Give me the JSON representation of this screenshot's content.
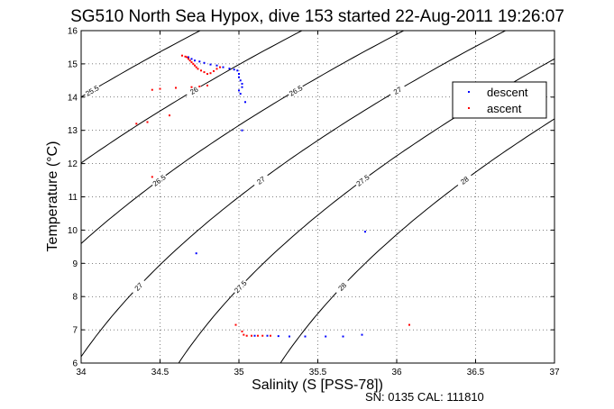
{
  "chart_data": {
    "type": "scatter",
    "title": "SG510 North Sea Hypox, dive 153 started 22-Aug-2011 19:26:07",
    "xlabel": "Salinity (S [PSS-78])",
    "ylabel": "Temperature (°C)",
    "footer": "SN: 0135  CAL: 111810",
    "xlim": [
      34,
      37
    ],
    "ylim": [
      6,
      16
    ],
    "xticks": [
      "34",
      "34.5",
      "35",
      "35.5",
      "36",
      "36.5",
      "37"
    ],
    "yticks": [
      "6",
      "7",
      "8",
      "9",
      "10",
      "11",
      "12",
      "13",
      "14",
      "15",
      "16"
    ],
    "grid": "dotted",
    "legend": {
      "placement": "top-right",
      "entries": [
        "descent",
        "ascent"
      ]
    },
    "colors": {
      "descent": "#0000ff",
      "ascent": "#ff0000",
      "contour": "#000000"
    },
    "density_contours": [
      {
        "sigma": 25.5,
        "label": "25.5"
      },
      {
        "sigma": 26,
        "label": "26"
      },
      {
        "sigma": 26.5,
        "label": "26.5"
      },
      {
        "sigma": 27,
        "label": "27"
      },
      {
        "sigma": 27.5,
        "label": "27.5"
      },
      {
        "sigma": 28,
        "label": "28"
      }
    ],
    "series": [
      {
        "name": "descent",
        "marker": ".",
        "x": [
          34.68,
          34.7,
          34.72,
          34.75,
          34.78,
          34.82,
          34.86,
          34.9,
          34.94,
          34.97,
          34.99,
          35.0,
          35.0,
          35.01,
          35.02,
          35.02,
          35.0,
          35.01,
          35.04,
          34.73,
          35.1,
          35.18,
          35.25,
          35.32,
          35.42,
          35.55,
          35.66,
          35.78,
          35.8,
          35.02
        ],
        "y": [
          15.2,
          15.15,
          15.1,
          15.07,
          15.03,
          14.98,
          14.95,
          14.9,
          14.86,
          14.83,
          14.8,
          14.7,
          14.6,
          14.5,
          14.4,
          14.3,
          14.2,
          14.1,
          13.85,
          9.3,
          6.82,
          6.82,
          6.81,
          6.8,
          6.8,
          6.8,
          6.8,
          6.85,
          9.95,
          13.0
        ]
      },
      {
        "name": "ascent",
        "marker": ".",
        "x": [
          34.64,
          34.66,
          34.67,
          34.68,
          34.69,
          34.7,
          34.71,
          34.72,
          34.73,
          34.74,
          34.76,
          34.78,
          34.8,
          34.82,
          34.84,
          34.86,
          34.88,
          34.8,
          34.75,
          34.7,
          34.6,
          34.5,
          34.45,
          34.56,
          34.42,
          34.35,
          34.45,
          34.98,
          35.02,
          35.03,
          35.05,
          35.08,
          35.12,
          35.15,
          35.2,
          36.08
        ],
        "y": [
          15.25,
          15.22,
          15.2,
          15.15,
          15.1,
          15.05,
          15.0,
          14.95,
          14.9,
          14.85,
          14.8,
          14.75,
          14.7,
          14.72,
          14.78,
          14.85,
          14.9,
          14.35,
          14.32,
          14.3,
          14.28,
          14.25,
          14.22,
          13.45,
          13.25,
          13.2,
          11.6,
          7.15,
          6.95,
          6.85,
          6.82,
          6.82,
          6.82,
          6.82,
          6.82,
          7.15
        ]
      }
    ]
  }
}
